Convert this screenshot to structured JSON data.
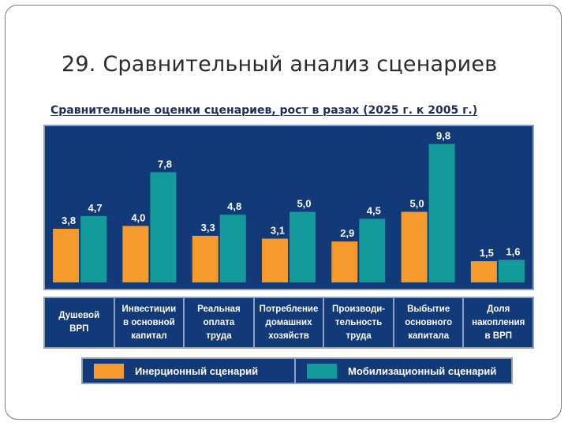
{
  "slide": {
    "title": "29. Сравнительный анализ сценариев"
  },
  "chart_data": {
    "type": "bar",
    "title": "Сравнительные оценки сценариев, рост в разах (2025 г. к 2005 г.)",
    "categories": [
      "Душевой\nВРП",
      "Инвестиции\nв основной\nкапитал",
      "Реальная\nоплата\nтруда",
      "Потребление\nдомашних\nхозяйств",
      "Производи-\nтельность\nтруда",
      "Выбытие\nосновного\nкапитала",
      "Доля\nнакопления\nв ВРП"
    ],
    "series": [
      {
        "name": "Инерционный сценарий",
        "color": "#f79a2e",
        "values": [
          3.8,
          4.0,
          3.3,
          3.1,
          2.9,
          5.0,
          1.5
        ],
        "labels": [
          "3,8",
          "4,0",
          "3,3",
          "3,1",
          "2,9",
          "5,0",
          "1,5"
        ]
      },
      {
        "name": "Мобилизационный сценарий",
        "color": "#139a9a",
        "values": [
          4.7,
          7.8,
          4.8,
          5.0,
          4.5,
          9.8,
          1.6
        ],
        "labels": [
          "4,7",
          "7,8",
          "4,8",
          "5,0",
          "4,5",
          "9,8",
          "1,6"
        ]
      }
    ],
    "ylim": [
      0,
      10.5
    ],
    "xlabel": "",
    "ylabel": "",
    "legend_position": "bottom",
    "grid": false
  },
  "colors": {
    "panel_background": "#123a78",
    "panel_border": "#8fa0bf",
    "title_text": "#1f2d5a"
  }
}
